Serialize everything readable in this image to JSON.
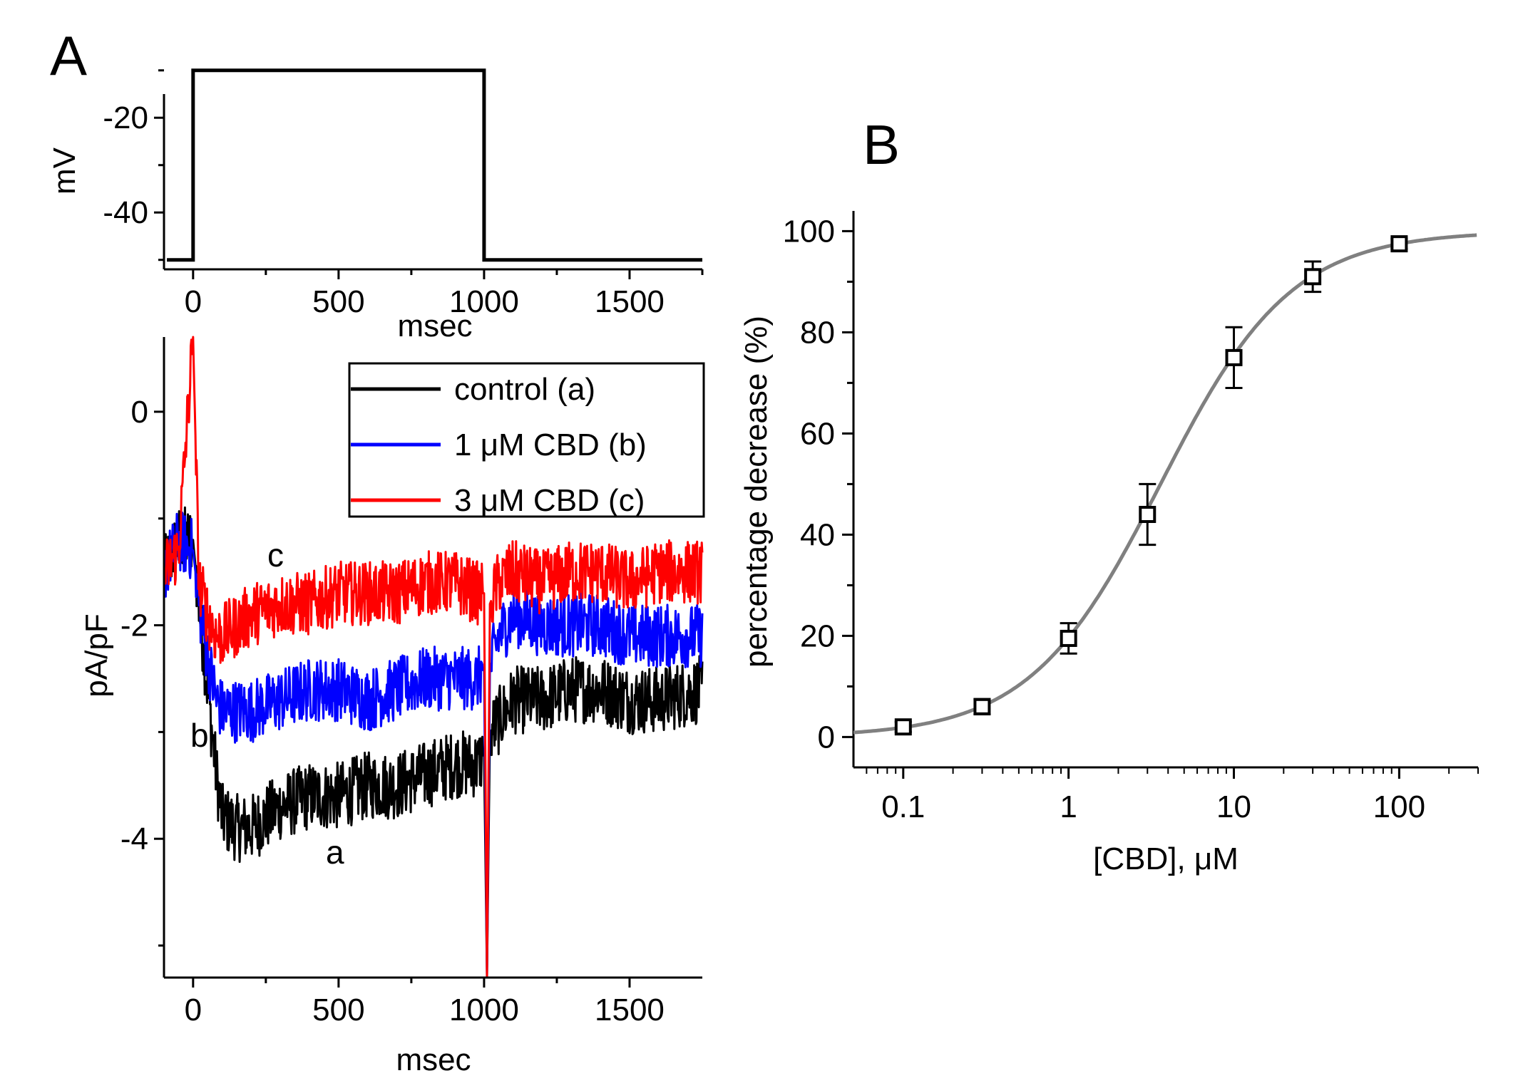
{
  "colors": {
    "control": "#000000",
    "cbd1": "#0000ff",
    "cbd3": "#ff0000",
    "fit": "#808080",
    "axis": "#000000"
  },
  "chart_data": [
    {
      "panel": "A",
      "subplot": "voltage-protocol",
      "type": "line",
      "xlabel": "msec",
      "ylabel": "mV",
      "xlim": [
        -100,
        1750
      ],
      "ylim": [
        -52,
        -15
      ],
      "xticks": [
        0,
        500,
        1000,
        1500
      ],
      "yticks": [
        -20,
        -40
      ],
      "x_tick_labels": [
        "0",
        "500",
        "1000",
        "1500"
      ],
      "y_tick_labels": [
        "-20",
        "-40"
      ],
      "series": [
        {
          "name": "step",
          "x": [
            -90,
            0,
            0,
            1000,
            1000,
            1750
          ],
          "y": [
            -50,
            -50,
            -10,
            -10,
            -50,
            -50
          ]
        }
      ]
    },
    {
      "panel": "A",
      "subplot": "current-traces",
      "type": "line",
      "xlabel": "msec",
      "ylabel": "pA/pF",
      "xlim": [
        -100,
        1750
      ],
      "ylim": [
        -5.3,
        0.7
      ],
      "xticks": [
        0,
        500,
        1000,
        1500
      ],
      "yticks": [
        0,
        -2,
        -4
      ],
      "x_tick_labels": [
        "0",
        "500",
        "1000",
        "1500"
      ],
      "y_tick_labels": [
        "0",
        "-2",
        "-4"
      ],
      "legend": [
        "control (a)",
        "1 μM CBD (b)",
        "3 μM CBD (c)"
      ],
      "annotations": [
        "a",
        "b",
        "c"
      ],
      "series": [
        {
          "name": "control (a)",
          "x": [
            -100,
            -50,
            0,
            20,
            50,
            80,
            100,
            150,
            200,
            300,
            400,
            500,
            600,
            700,
            800,
            900,
            980,
            1000,
            1010,
            1020,
            1050,
            1100,
            1200,
            1300,
            1400,
            1500,
            1600,
            1750
          ],
          "y": [
            -1.5,
            -1.2,
            -1.2,
            -1.8,
            -2.6,
            -3.4,
            -3.8,
            -3.9,
            -3.9,
            -3.7,
            -3.6,
            -3.6,
            -3.5,
            -3.5,
            -3.4,
            -3.3,
            -3.3,
            -3.2,
            -5.3,
            -3.0,
            -2.9,
            -2.7,
            -2.7,
            -2.6,
            -2.6,
            -2.7,
            -2.7,
            -2.6
          ]
        },
        {
          "name": "1 μM CBD (b)",
          "x": [
            -100,
            -50,
            0,
            20,
            50,
            80,
            100,
            150,
            200,
            300,
            400,
            500,
            600,
            700,
            800,
            900,
            980,
            1000,
            1010,
            1020,
            1050,
            1100,
            1200,
            1300,
            1400,
            1500,
            1600,
            1750
          ],
          "y": [
            -1.5,
            -1.2,
            -1.3,
            -1.8,
            -2.3,
            -2.7,
            -2.8,
            -2.8,
            -2.8,
            -2.7,
            -2.6,
            -2.6,
            -2.7,
            -2.6,
            -2.5,
            -2.5,
            -2.5,
            -2.4,
            -5.3,
            -2.4,
            -2.1,
            -1.9,
            -2.0,
            -2.0,
            -2.0,
            -2.1,
            -2.1,
            -2.1
          ]
        },
        {
          "name": "3 μM CBD (c)",
          "x": [
            -100,
            -50,
            0,
            20,
            50,
            80,
            100,
            150,
            200,
            300,
            400,
            500,
            600,
            700,
            800,
            900,
            980,
            1000,
            1010,
            1020,
            1050,
            1100,
            1200,
            1300,
            1400,
            1500,
            1600,
            1750
          ],
          "y": [
            -1.5,
            -1.3,
            0.7,
            -1.6,
            -1.9,
            -2.1,
            -2.1,
            -2.0,
            -1.9,
            -1.8,
            -1.8,
            -1.7,
            -1.7,
            -1.7,
            -1.6,
            -1.6,
            -1.7,
            -1.7,
            -5.3,
            -1.8,
            -1.6,
            -1.5,
            -1.6,
            -1.5,
            -1.5,
            -1.6,
            -1.5,
            -1.5
          ]
        }
      ]
    },
    {
      "panel": "B",
      "type": "scatter",
      "xscale": "log",
      "xlabel": "[CBD], μM",
      "ylabel": "percentage decrease (%)",
      "xlim": [
        0.05,
        300
      ],
      "ylim": [
        -6,
        104
      ],
      "xticks": [
        0.1,
        1,
        10,
        100
      ],
      "yticks": [
        0,
        20,
        40,
        60,
        80,
        100
      ],
      "x_tick_labels": [
        "0.1",
        "1",
        "10",
        "100"
      ],
      "y_tick_labels": [
        "0",
        "20",
        "40",
        "60",
        "80",
        "100"
      ],
      "series": [
        {
          "name": "data",
          "x": [
            0.1,
            0.3,
            1,
            3,
            10,
            30,
            100
          ],
          "y": [
            2,
            6,
            19.5,
            44,
            75,
            91,
            97.5
          ],
          "err": [
            1,
            1.5,
            3,
            6,
            6,
            3,
            1
          ]
        }
      ],
      "fit": {
        "type": "hill",
        "ic50": 3.6,
        "n_hill": 1.1,
        "top": 100
      }
    }
  ],
  "panel_labels": {
    "a": "A",
    "b": "B"
  }
}
